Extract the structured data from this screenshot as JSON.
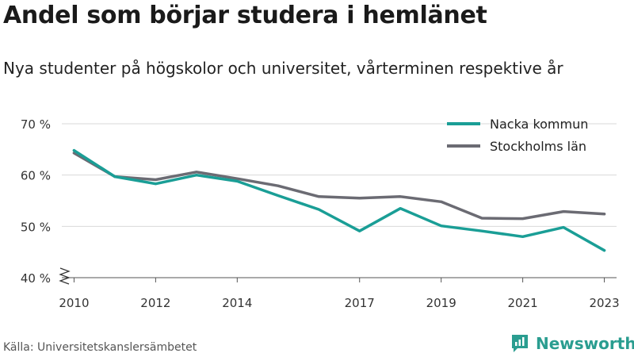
{
  "header": {
    "title": "Andel som börjar studera i hemlänet",
    "subtitle": "Nya studenter på högskolor och universitet, vårterminen respektive år"
  },
  "footer": {
    "source": "Källa: Universitetskanslersämbetet",
    "brand": "Newsworthy"
  },
  "chart_data": {
    "type": "line",
    "ylim": [
      40,
      70
    ],
    "xlim": [
      2009.7,
      2023.3
    ],
    "y_ticks": [
      40,
      50,
      60,
      70
    ],
    "y_tick_labels": [
      "40 %",
      "50 %",
      "60 %",
      "70 %"
    ],
    "x_ticks": [
      2010,
      2012,
      2014,
      2017,
      2019,
      2021,
      2023
    ],
    "x_tick_labels": [
      "2010",
      "2012",
      "2014",
      "2017",
      "2019",
      "2021",
      "2023"
    ],
    "x": [
      2010,
      2011,
      2012,
      2013,
      2014,
      2015,
      2016,
      2017,
      2018,
      2019,
      2020,
      2021,
      2022,
      2023
    ],
    "grid": true,
    "legend_position": "top-right",
    "axis_break": true,
    "series": [
      {
        "name": "Nacka kommun",
        "color": "#1a9e96",
        "values": [
          64.8,
          59.7,
          58.3,
          60.0,
          58.8,
          56.0,
          53.3,
          49.1,
          53.5,
          50.1,
          49.1,
          48.0,
          49.8,
          45.3
        ]
      },
      {
        "name": "Stockholms län",
        "color": "#6b6b73",
        "values": [
          64.3,
          59.7,
          59.1,
          60.6,
          59.3,
          57.9,
          55.8,
          55.5,
          55.8,
          54.8,
          51.6,
          51.5,
          52.9,
          52.4
        ]
      }
    ]
  }
}
